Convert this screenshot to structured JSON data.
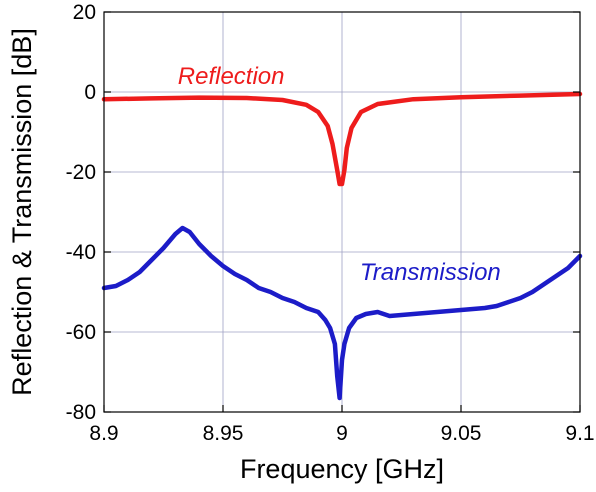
{
  "chart_data": {
    "type": "line",
    "title": "",
    "xlabel": "Frequency [GHz]",
    "ylabel": "Reflection & Transmission [dB]",
    "xlim": [
      8.9,
      9.1
    ],
    "ylim": [
      -80,
      20
    ],
    "xticks": [
      8.9,
      8.95,
      9.0,
      9.05,
      9.1
    ],
    "xtick_labels": [
      "8.9",
      "8.95",
      "9",
      "9.05",
      "9.1"
    ],
    "yticks": [
      -80,
      -60,
      -40,
      -20,
      0,
      20
    ],
    "ytick_labels": [
      "-80",
      "-60",
      "-40",
      "-20",
      "0",
      "20"
    ],
    "grid": true,
    "legend": "none",
    "series": [
      {
        "name": "Reflection",
        "color": "#ee1c1c",
        "x": [
          8.9,
          8.92,
          8.94,
          8.96,
          8.975,
          8.985,
          8.99,
          8.994,
          8.996,
          8.998,
          8.999,
          9.0,
          9.001,
          9.002,
          9.004,
          9.008,
          9.015,
          9.03,
          9.05,
          9.075,
          9.1
        ],
        "y": [
          -1.8,
          -1.6,
          -1.4,
          -1.5,
          -2.0,
          -3.2,
          -5.0,
          -8.5,
          -13.0,
          -19.5,
          -23.0,
          -23.0,
          -19.5,
          -14.0,
          -9.0,
          -5.0,
          -3.0,
          -1.8,
          -1.3,
          -0.9,
          -0.5
        ]
      },
      {
        "name": "Transmission",
        "color": "#1c1cc8",
        "x": [
          8.9,
          8.905,
          8.91,
          8.915,
          8.92,
          8.925,
          8.93,
          8.933,
          8.936,
          8.94,
          8.945,
          8.95,
          8.955,
          8.96,
          8.965,
          8.97,
          8.975,
          8.98,
          8.985,
          8.99,
          8.993,
          8.995,
          8.997,
          8.998,
          8.999,
          9.0,
          9.001,
          9.003,
          9.006,
          9.01,
          9.015,
          9.02,
          9.03,
          9.04,
          9.05,
          9.06,
          9.065,
          9.07,
          9.075,
          9.08,
          9.085,
          9.09,
          9.095,
          9.1
        ],
        "y": [
          -49,
          -48.5,
          -47,
          -45,
          -42,
          -39,
          -35.5,
          -34,
          -35,
          -38,
          -41,
          -43.5,
          -45.5,
          -47,
          -49,
          -50,
          -51.5,
          -52.5,
          -54,
          -55,
          -57,
          -59,
          -63,
          -71,
          -76.5,
          -67,
          -63,
          -59,
          -56.5,
          -55.5,
          -55,
          -56,
          -55.5,
          -55,
          -54.5,
          -54,
          -53.5,
          -52.5,
          -51.5,
          -50,
          -48,
          -46,
          -44,
          -41
        ]
      }
    ],
    "annotations": [
      {
        "text": "Reflection",
        "x": 8.931,
        "y": 4,
        "color": "#ee1c1c"
      },
      {
        "text": "Transmission",
        "x": 9.0075,
        "y": -45,
        "color": "#1c1cc8"
      }
    ]
  }
}
